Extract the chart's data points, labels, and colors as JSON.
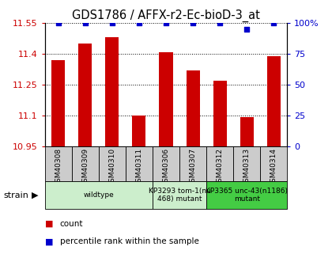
{
  "title": "GDS1786 / AFFX-r2-Ec-bioD-3_at",
  "samples": [
    "GSM40308",
    "GSM40309",
    "GSM40310",
    "GSM40311",
    "GSM40306",
    "GSM40307",
    "GSM40312",
    "GSM40313",
    "GSM40314"
  ],
  "counts": [
    11.37,
    11.45,
    11.48,
    11.1,
    11.41,
    11.32,
    11.27,
    11.09,
    11.39
  ],
  "percentiles": [
    100,
    100,
    100,
    100,
    100,
    100,
    100,
    95,
    100
  ],
  "ylim_left": [
    10.95,
    11.55
  ],
  "ylim_right": [
    0,
    100
  ],
  "yticks_left": [
    10.95,
    11.1,
    11.25,
    11.4,
    11.55
  ],
  "yticks_right": [
    0,
    25,
    50,
    75,
    100
  ],
  "strain_groups": [
    {
      "label": "wildtype",
      "start": 0,
      "end": 4,
      "color": "#cceecc"
    },
    {
      "label": "KP3293 tom-1(nu\n468) mutant",
      "start": 4,
      "end": 6,
      "color": "#cceecc"
    },
    {
      "label": "KP3365 unc-43(n1186)\nmutant",
      "start": 6,
      "end": 9,
      "color": "#44cc44"
    }
  ],
  "bar_color": "#cc0000",
  "dot_color": "#0000cc",
  "bar_width": 0.5,
  "tick_label_color_left": "#cc0000",
  "tick_label_color_right": "#0000cc",
  "sample_box_color": "#cccccc",
  "plot_bg": "#ffffff"
}
